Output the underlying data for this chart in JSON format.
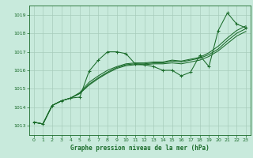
{
  "xlabel": "Graphe pression niveau de la mer (hPa)",
  "background_color": "#c8eadc",
  "grid_color": "#a8ccbb",
  "line_color": "#1a6b2a",
  "marker_color": "#1a6b2a",
  "ylim": [
    1012.5,
    1019.5
  ],
  "xlim": [
    -0.5,
    23.5
  ],
  "yticks": [
    1013,
    1014,
    1015,
    1016,
    1017,
    1018,
    1019
  ],
  "xticks": [
    0,
    1,
    2,
    3,
    4,
    5,
    6,
    7,
    8,
    9,
    10,
    11,
    12,
    13,
    14,
    15,
    16,
    17,
    18,
    19,
    20,
    21,
    22,
    23
  ],
  "series": [
    [
      1013.2,
      1013.1,
      1014.1,
      1014.35,
      1014.5,
      1014.55,
      1015.95,
      1016.55,
      1017.0,
      1017.0,
      1016.9,
      1016.35,
      1016.3,
      1016.2,
      1016.0,
      1016.0,
      1015.7,
      1015.9,
      1016.8,
      1016.2,
      1018.15,
      1019.1,
      1018.5,
      1018.3
    ],
    [
      1013.2,
      1013.1,
      1014.1,
      1014.35,
      1014.5,
      1014.75,
      1015.2,
      1015.55,
      1015.85,
      1016.1,
      1016.25,
      1016.3,
      1016.3,
      1016.35,
      1016.35,
      1016.4,
      1016.35,
      1016.45,
      1016.55,
      1016.75,
      1017.05,
      1017.45,
      1017.85,
      1018.1
    ],
    [
      1013.2,
      1013.1,
      1014.1,
      1014.35,
      1014.5,
      1014.75,
      1015.25,
      1015.6,
      1015.9,
      1016.15,
      1016.3,
      1016.35,
      1016.35,
      1016.4,
      1016.4,
      1016.5,
      1016.45,
      1016.55,
      1016.65,
      1016.85,
      1017.15,
      1017.6,
      1018.0,
      1018.25
    ],
    [
      1013.2,
      1013.1,
      1014.1,
      1014.35,
      1014.5,
      1014.8,
      1015.35,
      1015.7,
      1016.0,
      1016.2,
      1016.35,
      1016.4,
      1016.4,
      1016.45,
      1016.45,
      1016.55,
      1016.5,
      1016.6,
      1016.7,
      1016.95,
      1017.3,
      1017.75,
      1018.15,
      1018.4
    ]
  ]
}
